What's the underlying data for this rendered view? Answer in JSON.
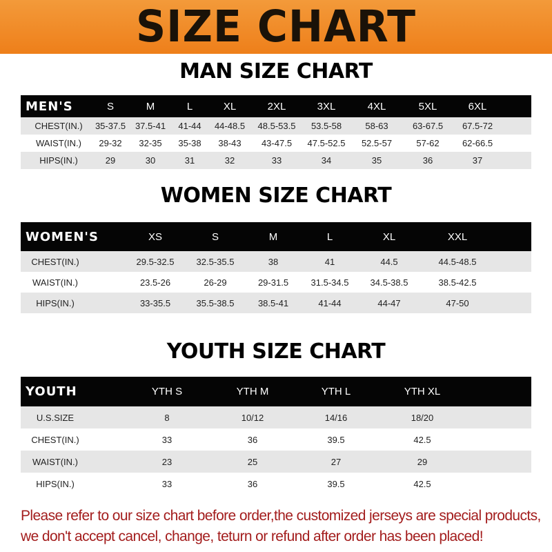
{
  "banner_title": "SIZE CHART",
  "men": {
    "title": "MAN SIZE CHART",
    "header": [
      "MEN'S",
      "S",
      "M",
      "L",
      "XL",
      "2XL",
      "3XL",
      "4XL",
      "5XL",
      "6XL"
    ],
    "rows": [
      [
        "CHEST(IN.)",
        "35-37.5",
        "37.5-41",
        "41-44",
        "44-48.5",
        "48.5-53.5",
        "53.5-58",
        "58-63",
        "63-67.5",
        "67.5-72"
      ],
      [
        "WAIST(IN.)",
        "29-32",
        "32-35",
        "35-38",
        "38-43",
        "43-47.5",
        "47.5-52.5",
        "52.5-57",
        "57-62",
        "62-66.5"
      ],
      [
        "HIPS(IN.)",
        "29",
        "30",
        "31",
        "32",
        "33",
        "34",
        "35",
        "36",
        "37"
      ]
    ]
  },
  "women": {
    "title": "WOMEN SIZE CHART",
    "header": [
      "WOMEN'S",
      "XS",
      "S",
      "M",
      "L",
      "XL",
      "XXL"
    ],
    "rows": [
      [
        "CHEST(IN.)",
        "29.5-32.5",
        "32.5-35.5",
        "38",
        "41",
        "44.5",
        "44.5-48.5"
      ],
      [
        "WAIST(IN.)",
        "23.5-26",
        "26-29",
        "29-31.5",
        "31.5-34.5",
        "34.5-38.5",
        "38.5-42.5"
      ],
      [
        "HIPS(IN.)",
        "33-35.5",
        "35.5-38.5",
        "38.5-41",
        "41-44",
        "44-47",
        "47-50"
      ]
    ]
  },
  "youth": {
    "title": "YOUTH SIZE CHART",
    "header": [
      "YOUTH",
      "YTH S",
      "YTH M",
      "YTH L",
      "YTH XL"
    ],
    "rows": [
      [
        "U.S.SIZE",
        "8",
        "10/12",
        "14/16",
        "18/20"
      ],
      [
        "CHEST(IN.)",
        "33",
        "36",
        "39.5",
        "42.5"
      ],
      [
        "WAIST(IN.)",
        "23",
        "25",
        "27",
        "29"
      ],
      [
        "HIPS(IN.)",
        "33",
        "36",
        "39.5",
        "42.5"
      ]
    ]
  },
  "note": {
    "line1": "Please refer to our size chart before order,the customized jerseys are special products,",
    "line2": "we don't accept cancel, change, teturn or refund after order has been placed!"
  },
  "colors": {
    "banner": "#ee7f1a",
    "header_bg": "#050505",
    "row_alt": "#e6e6e6",
    "note": "#a31d1d"
  }
}
